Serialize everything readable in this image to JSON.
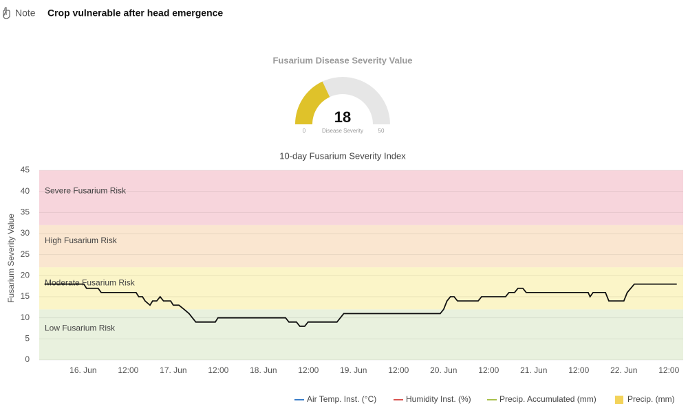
{
  "note": {
    "label": "Note",
    "text": "Crop vulnerable after head emergence"
  },
  "chart_data": [
    {
      "type": "gauge",
      "title": "Fusarium Disease Severity Value",
      "value": 18,
      "label": "Disease Severity",
      "min": 0,
      "max": 50,
      "color": "#dfc22a",
      "track_color": "#e6e6e6"
    },
    {
      "type": "line",
      "title": "10-day Fusarium Severity Index",
      "y_label": "Fusarium Severity Value",
      "x": [
        13.7,
        24.2,
        24.9,
        28.0,
        28.8,
        38.1,
        38.8,
        39.8,
        40.5,
        41.8,
        42.5,
        43.6,
        44.5,
        45.4,
        47.3,
        48.0,
        49.5,
        50.9,
        52.2,
        54.0,
        59.2,
        59.9,
        77.9,
        78.8,
        80.8,
        81.7,
        83.0,
        83.9,
        91.6,
        93.4,
        119.1,
        120.0,
        120.9,
        121.8,
        122.8,
        123.7,
        129.2,
        130.1,
        136.5,
        137.4,
        138.9,
        139.8,
        141.1,
        142.0,
        158.5,
        159.0,
        159.8,
        163.1,
        164.0,
        168.0,
        168.9,
        170.8,
        182.1
      ],
      "series": [
        {
          "color": "#111111",
          "values": [
            18,
            18,
            17,
            17,
            16,
            16,
            15,
            15,
            14,
            13,
            14,
            14,
            15,
            14,
            14,
            13,
            13,
            12,
            11,
            9,
            9,
            10,
            10,
            9,
            9,
            8,
            8,
            9,
            9,
            11,
            11,
            12,
            14,
            15,
            15,
            14,
            14,
            15,
            15,
            16,
            16,
            17,
            17,
            16,
            16,
            15,
            16,
            16,
            14,
            14,
            16,
            18,
            18
          ]
        }
      ],
      "xlim": [
        12.3,
        183.8
      ],
      "xticks": [
        {
          "value": 24,
          "label": "16. Jun"
        },
        {
          "value": 36,
          "label": "12:00"
        },
        {
          "value": 48,
          "label": "17. Jun"
        },
        {
          "value": 60,
          "label": "12:00"
        },
        {
          "value": 72,
          "label": "18. Jun"
        },
        {
          "value": 84,
          "label": "12:00"
        },
        {
          "value": 96,
          "label": "19. Jun"
        },
        {
          "value": 108,
          "label": "12:00"
        },
        {
          "value": 120,
          "label": "20. Jun"
        },
        {
          "value": 132,
          "label": "12:00"
        },
        {
          "value": 144,
          "label": "21. Jun"
        },
        {
          "value": 156,
          "label": "12:00"
        },
        {
          "value": 168,
          "label": "22. Jun"
        },
        {
          "value": 180,
          "label": "12:00"
        }
      ],
      "ylim": [
        0,
        45
      ],
      "yticks": [
        0,
        5,
        10,
        15,
        20,
        25,
        30,
        35,
        40,
        45
      ],
      "grid": true,
      "bands": [
        {
          "label": "Low Fusarium Risk",
          "from": 0,
          "to": 12,
          "color": "#e9f1de"
        },
        {
          "label": "Moderate Fusarium Risk",
          "from": 12,
          "to": 22,
          "color": "#fbf5c8"
        },
        {
          "label": "High Fusarium Risk",
          "from": 22,
          "to": 32,
          "color": "#fae6d0"
        },
        {
          "label": "Severe Fusarium Risk",
          "from": 32,
          "to": 45,
          "color": "#f7d5dc"
        }
      ],
      "legend": [
        {
          "name": "Air Temp. Inst. (°C)",
          "color": "#3a7dc9",
          "marker": "line"
        },
        {
          "name": "Humidity Inst. (%)",
          "color": "#d9534f",
          "marker": "line"
        },
        {
          "name": "Precip. Accumulated (mm)",
          "color": "#a8c04a",
          "marker": "line"
        },
        {
          "name": "Precip. (mm)",
          "color": "#f3d35a",
          "marker": "square"
        }
      ]
    }
  ]
}
